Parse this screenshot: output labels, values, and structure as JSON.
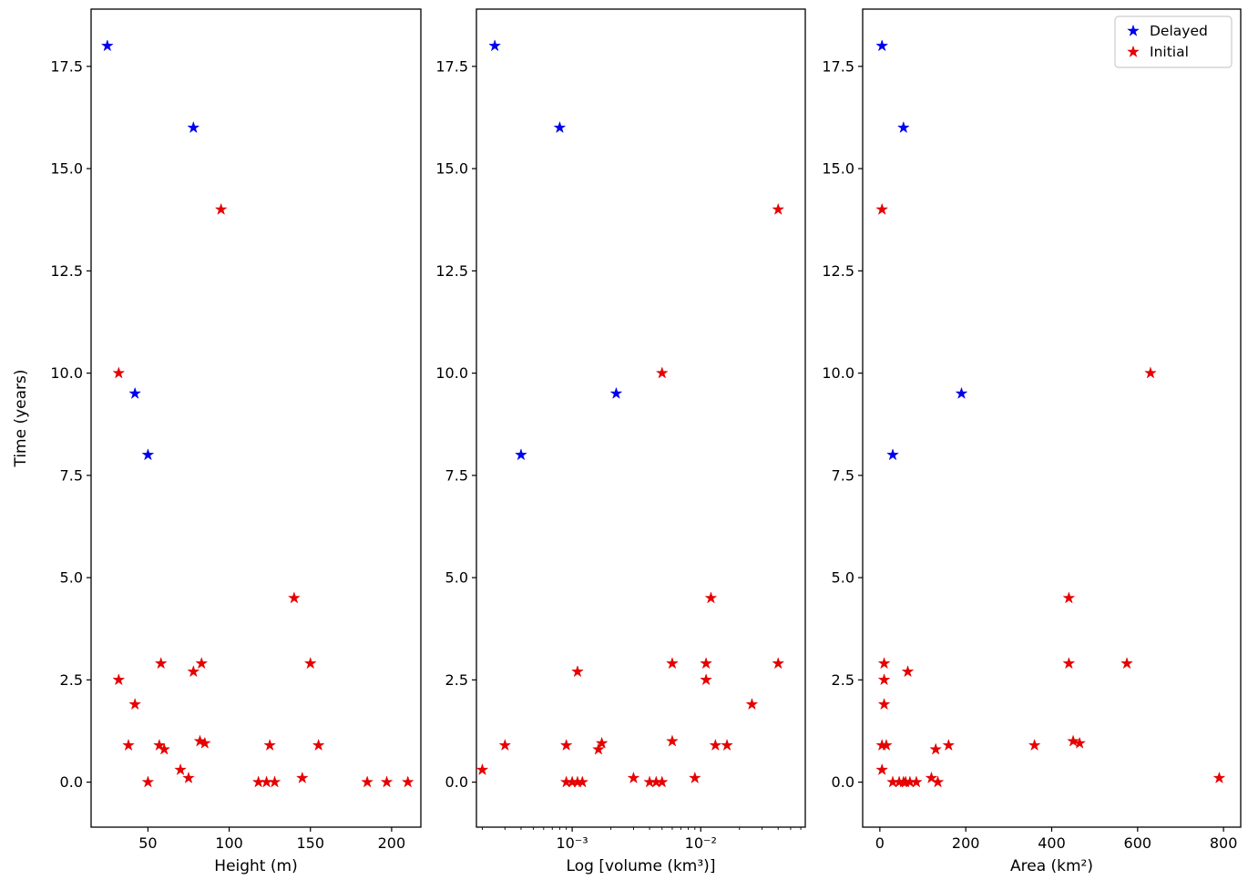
{
  "figure": {
    "background": "#ffffff",
    "ylabel": "Time (years)"
  },
  "legend": {
    "position": "top-right-panel-3",
    "entries": [
      {
        "label": "Delayed",
        "color": "#0000ee",
        "marker": "star"
      },
      {
        "label": "Initial",
        "color": "#e60000",
        "marker": "star"
      }
    ]
  },
  "chart_data": [
    {
      "type": "scatter",
      "title": "",
      "xlabel": "Height (m)",
      "ylabel": "Time (years)",
      "xscale": "linear",
      "xlim": [
        15,
        218
      ],
      "xticks": [
        50,
        100,
        150,
        200
      ],
      "xtick_labels": [
        "50",
        "100",
        "150",
        "200"
      ],
      "ylim": [
        -1.1,
        18.9
      ],
      "yticks": [
        0.0,
        2.5,
        5.0,
        7.5,
        10.0,
        12.5,
        15.0,
        17.5
      ],
      "ytick_labels": [
        "0.0",
        "2.5",
        "5.0",
        "7.5",
        "10.0",
        "12.5",
        "15.0",
        "17.5"
      ],
      "grid": false,
      "show_ylabel": true,
      "show_legend": false,
      "series": [
        {
          "name": "Delayed",
          "color": "#0000ee",
          "x": [
            25,
            78,
            42,
            50
          ],
          "y": [
            18,
            16,
            9.5,
            8
          ]
        },
        {
          "name": "Initial",
          "color": "#e60000",
          "x": [
            95,
            32,
            140,
            58,
            83,
            150,
            78,
            32,
            42,
            38,
            57,
            60,
            82,
            85,
            125,
            155,
            70,
            75,
            145,
            50,
            118,
            123,
            128,
            185,
            197,
            210
          ],
          "y": [
            14,
            10,
            4.5,
            2.9,
            2.9,
            2.9,
            2.7,
            2.5,
            1.9,
            0.9,
            0.9,
            0.8,
            1.0,
            0.95,
            0.9,
            0.9,
            0.3,
            0.1,
            0.1,
            0,
            0,
            0,
            0,
            0,
            0,
            0
          ]
        }
      ]
    },
    {
      "type": "scatter",
      "title": "",
      "xlabel": "Log [volume (km³)]",
      "ylabel": "Time (years)",
      "xscale": "log",
      "xlim": [
        0.00018,
        0.065
      ],
      "xticks": [
        0.001,
        0.01
      ],
      "xtick_labels": [
        "10⁻³",
        "10⁻²"
      ],
      "ylim": [
        -1.1,
        18.9
      ],
      "yticks": [
        0.0,
        2.5,
        5.0,
        7.5,
        10.0,
        12.5,
        15.0,
        17.5
      ],
      "ytick_labels": [
        "0.0",
        "2.5",
        "5.0",
        "7.5",
        "10.0",
        "12.5",
        "15.0",
        "17.5"
      ],
      "grid": false,
      "show_ylabel": false,
      "show_legend": false,
      "series": [
        {
          "name": "Delayed",
          "color": "#0000ee",
          "x": [
            0.00025,
            0.0008,
            0.0022,
            0.0004
          ],
          "y": [
            18,
            16,
            9.5,
            8
          ]
        },
        {
          "name": "Initial",
          "color": "#e60000",
          "x": [
            0.04,
            0.005,
            0.012,
            0.006,
            0.011,
            0.04,
            0.0011,
            0.011,
            0.025,
            0.0003,
            0.0009,
            0.0016,
            0.006,
            0.0017,
            0.013,
            0.016,
            0.0002,
            0.003,
            0.009,
            0.0009,
            0.001,
            0.0011,
            0.0012,
            0.004,
            0.0045,
            0.005
          ],
          "y": [
            14,
            10,
            4.5,
            2.9,
            2.9,
            2.9,
            2.7,
            2.5,
            1.9,
            0.9,
            0.9,
            0.8,
            1.0,
            0.95,
            0.9,
            0.9,
            0.3,
            0.1,
            0.1,
            0,
            0,
            0,
            0,
            0,
            0,
            0
          ]
        }
      ]
    },
    {
      "type": "scatter",
      "title": "",
      "xlabel": "Area (km²)",
      "ylabel": "Time (years)",
      "xscale": "linear",
      "xlim": [
        -40,
        840
      ],
      "xticks": [
        0,
        200,
        400,
        600,
        800
      ],
      "xtick_labels": [
        "0",
        "200",
        "400",
        "600",
        "800"
      ],
      "ylim": [
        -1.1,
        18.9
      ],
      "yticks": [
        0.0,
        2.5,
        5.0,
        7.5,
        10.0,
        12.5,
        15.0,
        17.5
      ],
      "ytick_labels": [
        "0.0",
        "2.5",
        "5.0",
        "7.5",
        "10.0",
        "12.5",
        "15.0",
        "17.5"
      ],
      "grid": false,
      "show_ylabel": false,
      "show_legend": true,
      "series": [
        {
          "name": "Delayed",
          "color": "#0000ee",
          "x": [
            5,
            55,
            190,
            30
          ],
          "y": [
            18,
            16,
            9.5,
            8
          ]
        },
        {
          "name": "Initial",
          "color": "#e60000",
          "x": [
            5,
            630,
            440,
            10,
            440,
            575,
            65,
            10,
            10,
            5,
            15,
            130,
            450,
            465,
            160,
            360,
            5,
            120,
            790,
            30,
            45,
            55,
            70,
            85,
            60,
            135
          ],
          "y": [
            14,
            10,
            4.5,
            2.9,
            2.9,
            2.9,
            2.7,
            2.5,
            1.9,
            0.9,
            0.9,
            0.8,
            1.0,
            0.95,
            0.9,
            0.9,
            0.3,
            0.1,
            0.1,
            0,
            0,
            0,
            0,
            0,
            0,
            0
          ]
        }
      ]
    }
  ]
}
